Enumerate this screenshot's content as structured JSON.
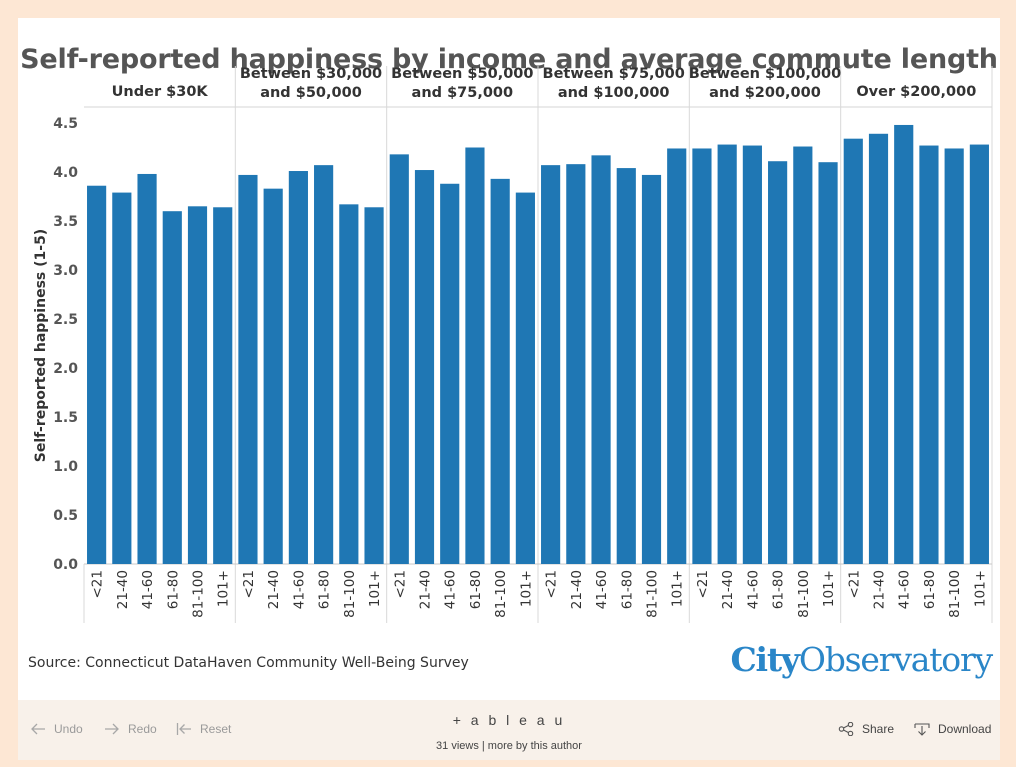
{
  "chart_data": {
    "type": "bar",
    "title": "Self-reported happiness by income and average commute length",
    "ylabel": "Self-reported happiness (1-5)",
    "ylim": [
      0,
      4.7
    ],
    "yticks": [
      "0.0",
      "0.5",
      "1.0",
      "1.5",
      "2.0",
      "2.5",
      "3.0",
      "3.5",
      "4.0",
      "4.5"
    ],
    "grid": false,
    "bar_color": "#1f77b4",
    "categories": [
      "<21",
      "21-40",
      "41-60",
      "61-80",
      "81-100",
      "101+"
    ],
    "groups": [
      {
        "label_lines": [
          "Under $30K"
        ],
        "values": [
          3.86,
          3.79,
          3.98,
          3.6,
          3.65,
          3.64
        ]
      },
      {
        "label_lines": [
          "Between $30,000",
          "and $50,000"
        ],
        "values": [
          3.97,
          3.83,
          4.01,
          4.07,
          3.67,
          3.64
        ]
      },
      {
        "label_lines": [
          "Between $50,000",
          "and $75,000"
        ],
        "values": [
          4.18,
          4.02,
          3.88,
          4.25,
          3.93,
          3.79
        ]
      },
      {
        "label_lines": [
          "Between $75,000",
          "and $100,000"
        ],
        "values": [
          4.07,
          4.08,
          4.17,
          4.04,
          3.97,
          4.24
        ]
      },
      {
        "label_lines": [
          "Between $100,000",
          "and $200,000"
        ],
        "values": [
          4.24,
          4.28,
          4.27,
          4.11,
          4.26,
          4.1
        ]
      },
      {
        "label_lines": [
          "Over $200,000"
        ],
        "values": [
          4.34,
          4.39,
          4.48,
          4.27,
          4.24,
          4.28
        ]
      }
    ]
  },
  "source": "Source: Connecticut DataHaven Community Well-Being Survey",
  "logo": {
    "bold": "City",
    "regular": "Observatory"
  },
  "toolbar": {
    "undo": "Undo",
    "redo": "Redo",
    "reset": "Reset",
    "tableau": "+ a b l e a u",
    "views": "31 views  |  more by this author",
    "share": "Share",
    "download": "Download"
  }
}
